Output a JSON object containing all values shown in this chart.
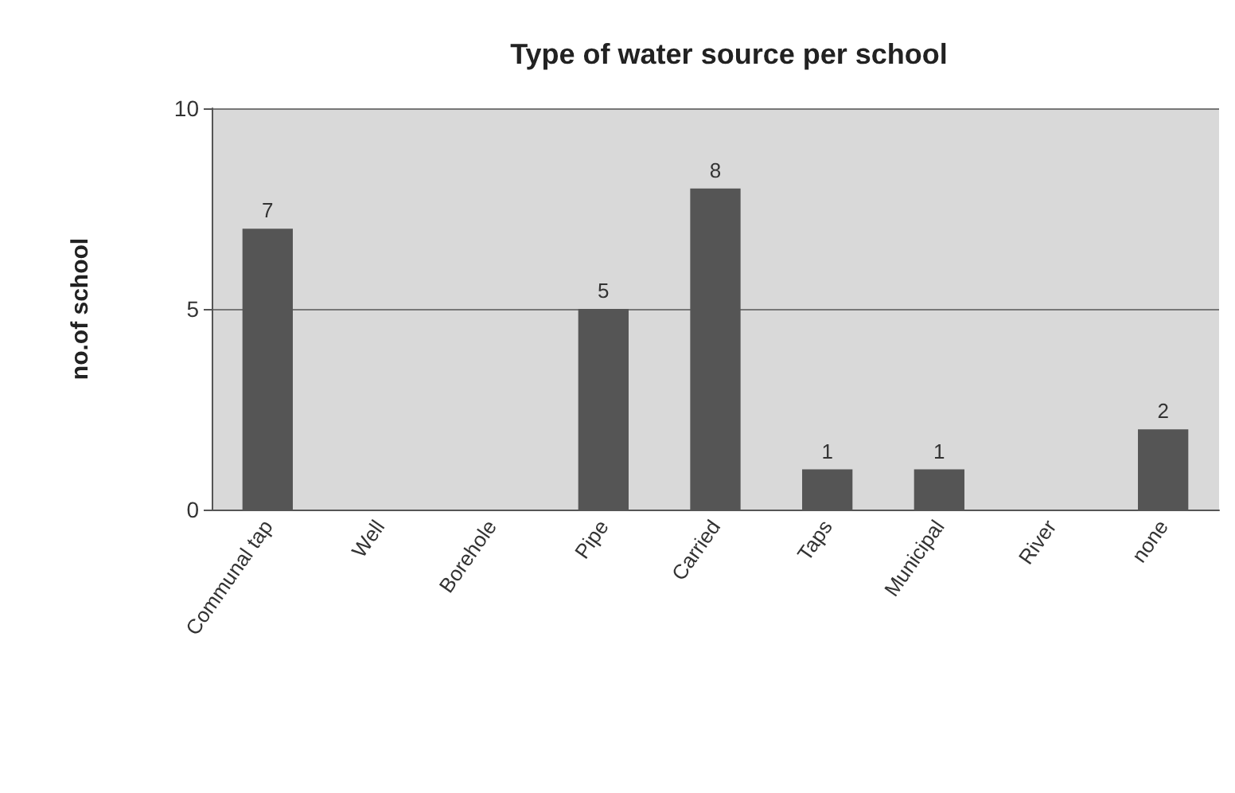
{
  "chart_data": {
    "type": "bar",
    "title": "Type of water source per school",
    "ylabel": "no.of school",
    "categories": [
      "Communal tap",
      "Well",
      "Borehole",
      "Pipe",
      "Carried",
      "Taps",
      "Municipal",
      "River",
      "none"
    ],
    "values": [
      7,
      0,
      0,
      5,
      8,
      1,
      1,
      0,
      2
    ],
    "color": "#555555",
    "value_labels": [
      "7",
      null,
      null,
      "5",
      "8",
      "1",
      "1",
      null,
      "2"
    ],
    "ylim": [
      0,
      10
    ],
    "yticks": [
      0,
      5,
      10
    ],
    "grid": "y"
  }
}
